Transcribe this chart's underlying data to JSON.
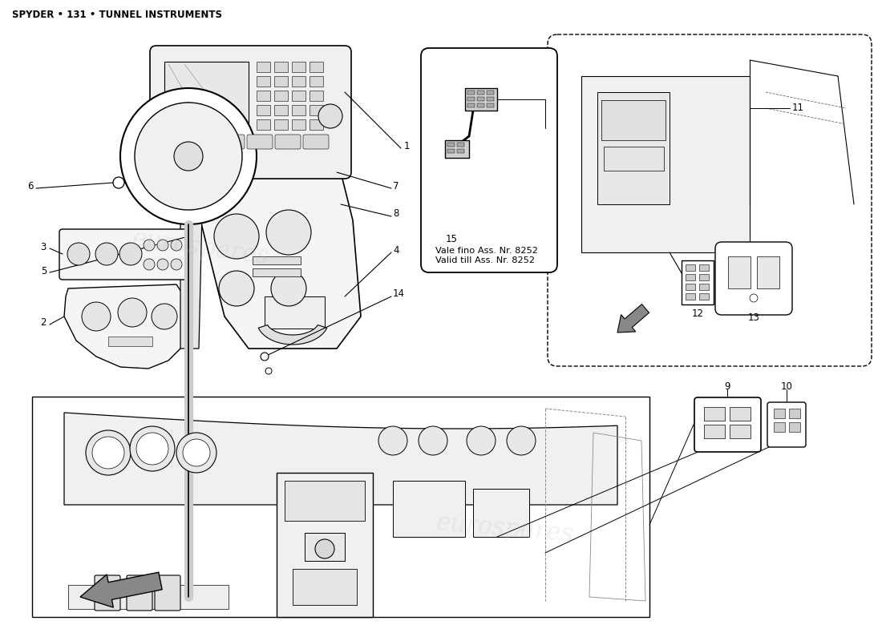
{
  "title": "SPYDER • 131 • TUNNEL INSTRUMENTS",
  "bg": "#ffffff",
  "watermark": "eurospares",
  "annotation_15": "Vale fino Ass. Nr. 8252\nValid till Ass. Nr. 8252",
  "label_fontsize": 8.5,
  "title_fontsize": 8.5
}
